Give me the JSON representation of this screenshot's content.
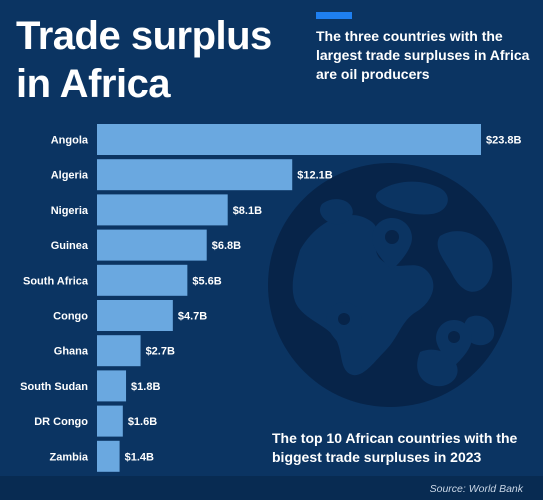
{
  "title": "Trade surplus in Africa",
  "subtitle": "The three countries with the largest trade surpluses in Africa are oil producers",
  "footnote": "The top 10 African countries with the biggest trade surpluses in 2023",
  "source": "Source: World Bank",
  "colors": {
    "background": "#0b3462",
    "bar": "#6aa8e0",
    "accent": "#1e7ff0",
    "globe": "#072449"
  },
  "icons": [
    "globe-icon",
    "map-pin-icon"
  ],
  "chart_data": {
    "type": "bar",
    "orientation": "horizontal",
    "categories": [
      "Angola",
      "Algeria",
      "Nigeria",
      "Guinea",
      "South Africa",
      "Congo",
      "Ghana",
      "South Sudan",
      "DR Congo",
      "Zambia"
    ],
    "values": [
      23.8,
      12.1,
      8.1,
      6.8,
      5.6,
      4.7,
      2.7,
      1.8,
      1.6,
      1.4
    ],
    "value_labels": [
      "$23.8B",
      "$12.1B",
      "$8.1B",
      "$6.8B",
      "$5.6B",
      "$4.7B",
      "$2.7B",
      "$1.8B",
      "$1.6B",
      "$1.4B"
    ],
    "unit": "B",
    "xlim": [
      0,
      23.8
    ],
    "grid": false,
    "legend": "none"
  }
}
